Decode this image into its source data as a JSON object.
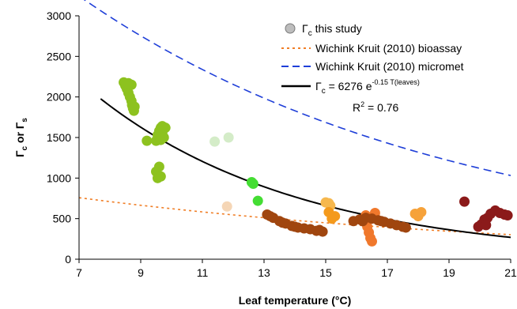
{
  "chart_data": {
    "type": "scatter",
    "xlabel": "Leaf temperature (°C)",
    "ylabel_main": "Γ",
    "ylabel_sub1": "c",
    "ylabel_or": " or ",
    "ylabel_sub2": "s",
    "xlim": [
      7,
      21
    ],
    "ylim": [
      0,
      3000
    ],
    "x_ticks": [
      7,
      9,
      11,
      13,
      15,
      17,
      19,
      21
    ],
    "y_ticks": [
      0,
      500,
      1000,
      1500,
      2000,
      2500,
      3000
    ],
    "grid": false,
    "legend": {
      "placement": "top-right",
      "entries": [
        {
          "symbol": "Γ",
          "sub": "c",
          "rest": " this study",
          "marker": "circle",
          "color": "#bdbdbd"
        },
        {
          "text": "Wichink Kruit (2010) bioassay",
          "marker": "dotted-line",
          "color": "#f07e26"
        },
        {
          "text": "Wichink Kruit (2010) micromet",
          "marker": "dashed-line",
          "color": "#1f3fd8"
        },
        {
          "symbol": "Γ",
          "sub": "c",
          "rest": " = 6276 e",
          "sup": "-0.15 T(leaves)",
          "marker": "solid-line",
          "color": "#000000"
        }
      ],
      "r2": "R",
      "r2_sup": "2",
      "r2_rest": " = 0.76"
    },
    "curves": {
      "micromet": {
        "a": 5750,
        "b": 0.0818,
        "x_range": [
          7,
          21
        ],
        "color": "#1f3fd8",
        "style": "dashed"
      },
      "bioassay": {
        "a": 1200,
        "b": 0.0656,
        "x_range": [
          7,
          21
        ],
        "color": "#f07e26",
        "style": "dotted"
      },
      "fit": {
        "a": 6276,
        "b": 0.15,
        "x_range": [
          7.7,
          21
        ],
        "color": "#000000",
        "style": "solid"
      }
    },
    "series": [
      {
        "color": "#8dc21f",
        "points": [
          [
            8.45,
            2180
          ],
          [
            8.5,
            2140
          ],
          [
            8.55,
            2100
          ],
          [
            8.6,
            2050
          ],
          [
            8.65,
            2000
          ],
          [
            8.7,
            1950
          ],
          [
            8.72,
            1900
          ],
          [
            8.75,
            1860
          ],
          [
            8.78,
            1830
          ],
          [
            8.8,
            1880
          ],
          [
            8.7,
            2150
          ],
          [
            8.6,
            2170
          ]
        ]
      },
      {
        "color": "#8dc21f",
        "points": [
          [
            9.2,
            1460
          ],
          [
            9.5,
            1460
          ],
          [
            9.55,
            1530
          ],
          [
            9.6,
            1580
          ],
          [
            9.65,
            1620
          ],
          [
            9.7,
            1560
          ],
          [
            9.75,
            1500
          ],
          [
            9.8,
            1620
          ],
          [
            9.7,
            1640
          ],
          [
            9.65,
            1470
          ],
          [
            9.5,
            1080
          ],
          [
            9.55,
            1000
          ],
          [
            9.6,
            1140
          ],
          [
            9.65,
            1020
          ]
        ]
      },
      {
        "color": "#d4ecc8",
        "points": [
          [
            11.4,
            1450
          ],
          [
            11.85,
            1500
          ]
        ]
      },
      {
        "color": "#f5d6b6",
        "points": [
          [
            11.8,
            650
          ]
        ]
      },
      {
        "color": "#44dd33",
        "points": [
          [
            12.6,
            950
          ],
          [
            12.65,
            930
          ],
          [
            12.8,
            720
          ]
        ]
      },
      {
        "color": "#f6b84e",
        "points": [
          [
            15.0,
            700
          ],
          [
            15.1,
            690
          ],
          [
            15.15,
            660
          ]
        ]
      },
      {
        "color": "#f49a1c",
        "points": [
          [
            15.1,
            580
          ],
          [
            15.3,
            530
          ],
          [
            15.2,
            500
          ]
        ]
      },
      {
        "color": "#f6a23a",
        "points": [
          [
            17.9,
            560
          ],
          [
            18.0,
            530
          ],
          [
            18.1,
            580
          ]
        ]
      },
      {
        "color": "#f0782c",
        "points": [
          [
            16.3,
            450
          ],
          [
            16.35,
            400
          ],
          [
            16.4,
            330
          ],
          [
            16.45,
            260
          ],
          [
            16.5,
            220
          ],
          [
            16.3,
            540
          ],
          [
            16.6,
            570
          ]
        ]
      },
      {
        "color": "#a0460f",
        "points": [
          [
            13.1,
            550
          ],
          [
            13.3,
            510
          ],
          [
            13.5,
            470
          ],
          [
            13.7,
            440
          ],
          [
            13.9,
            410
          ],
          [
            14.1,
            390
          ],
          [
            14.3,
            380
          ],
          [
            14.5,
            370
          ],
          [
            14.7,
            350
          ],
          [
            14.9,
            340
          ],
          [
            14.8,
            360
          ],
          [
            14.0,
            400
          ],
          [
            13.6,
            450
          ],
          [
            13.2,
            530
          ]
        ]
      },
      {
        "color": "#a0460f",
        "points": [
          [
            15.9,
            470
          ],
          [
            16.1,
            490
          ],
          [
            16.3,
            510
          ],
          [
            16.5,
            500
          ],
          [
            16.7,
            480
          ],
          [
            16.9,
            460
          ],
          [
            17.1,
            440
          ],
          [
            17.3,
            420
          ],
          [
            17.5,
            400
          ],
          [
            17.6,
            390
          ],
          [
            16.2,
            470
          ],
          [
            16.8,
            470
          ]
        ]
      },
      {
        "color": "#8b1a1a",
        "points": [
          [
            19.5,
            710
          ],
          [
            19.95,
            400
          ],
          [
            20.05,
            430
          ],
          [
            20.15,
            490
          ],
          [
            20.25,
            510
          ],
          [
            20.35,
            560
          ],
          [
            20.5,
            600
          ],
          [
            20.65,
            570
          ],
          [
            20.8,
            550
          ],
          [
            20.9,
            540
          ],
          [
            20.2,
            420
          ]
        ]
      }
    ]
  }
}
